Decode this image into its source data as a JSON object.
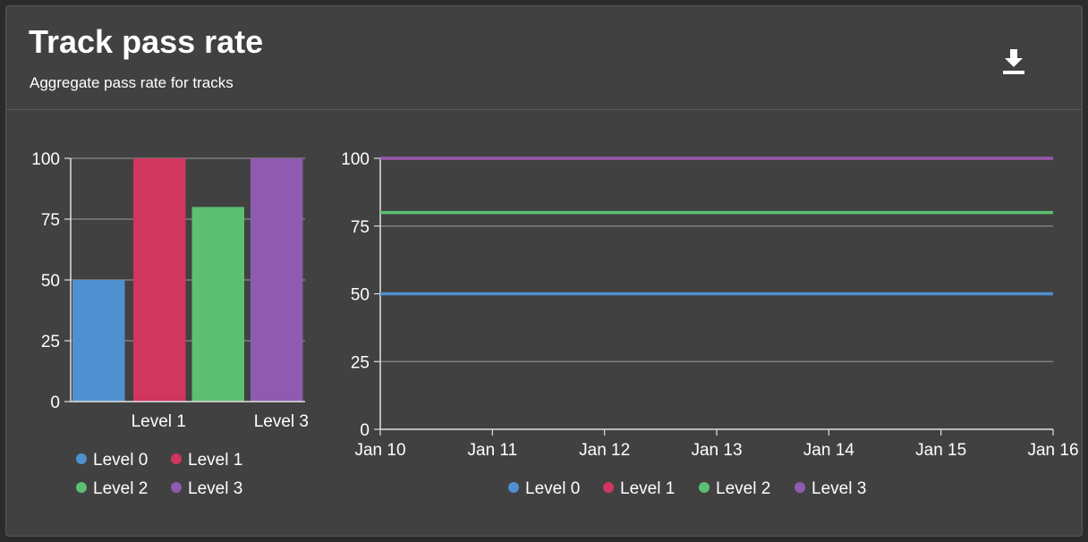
{
  "header": {
    "title": "Track pass rate",
    "subtitle": "Aggregate pass rate for tracks",
    "download_icon": "download-icon"
  },
  "colors": {
    "level0": "#4f90d0",
    "level1": "#d0365f",
    "level2": "#5cbf72",
    "level3": "#8f5bb0"
  },
  "chart_data": [
    {
      "type": "bar",
      "categories": [
        "Level 0",
        "Level 1",
        "Level 2",
        "Level 3"
      ],
      "values": [
        50,
        100,
        80,
        100
      ],
      "visible_tick_labels": [
        "",
        "Level 1",
        "",
        "Level 3"
      ],
      "ylim": [
        0,
        100
      ],
      "yticks": [
        0,
        25,
        50,
        75,
        100
      ],
      "grid": true,
      "legend": [
        "Level 0",
        "Level 1",
        "Level 2",
        "Level 3"
      ],
      "legend_placement": "bottom"
    },
    {
      "type": "line",
      "x": [
        "Jan 10",
        "Jan 11",
        "Jan 12",
        "Jan 13",
        "Jan 14",
        "Jan 15",
        "Jan 16"
      ],
      "series": [
        {
          "name": "Level 0",
          "values": [
            50,
            50,
            50,
            50,
            50,
            50,
            50
          ]
        },
        {
          "name": "Level 1",
          "values": [
            100,
            100,
            100,
            100,
            100,
            100,
            100
          ]
        },
        {
          "name": "Level 2",
          "values": [
            80,
            80,
            80,
            80,
            80,
            80,
            80
          ]
        },
        {
          "name": "Level 3",
          "values": [
            100,
            100,
            100,
            100,
            100,
            100,
            100
          ]
        }
      ],
      "ylim": [
        0,
        100
      ],
      "yticks": [
        0,
        25,
        50,
        75,
        100
      ],
      "grid": true,
      "legend_placement": "bottom"
    }
  ]
}
